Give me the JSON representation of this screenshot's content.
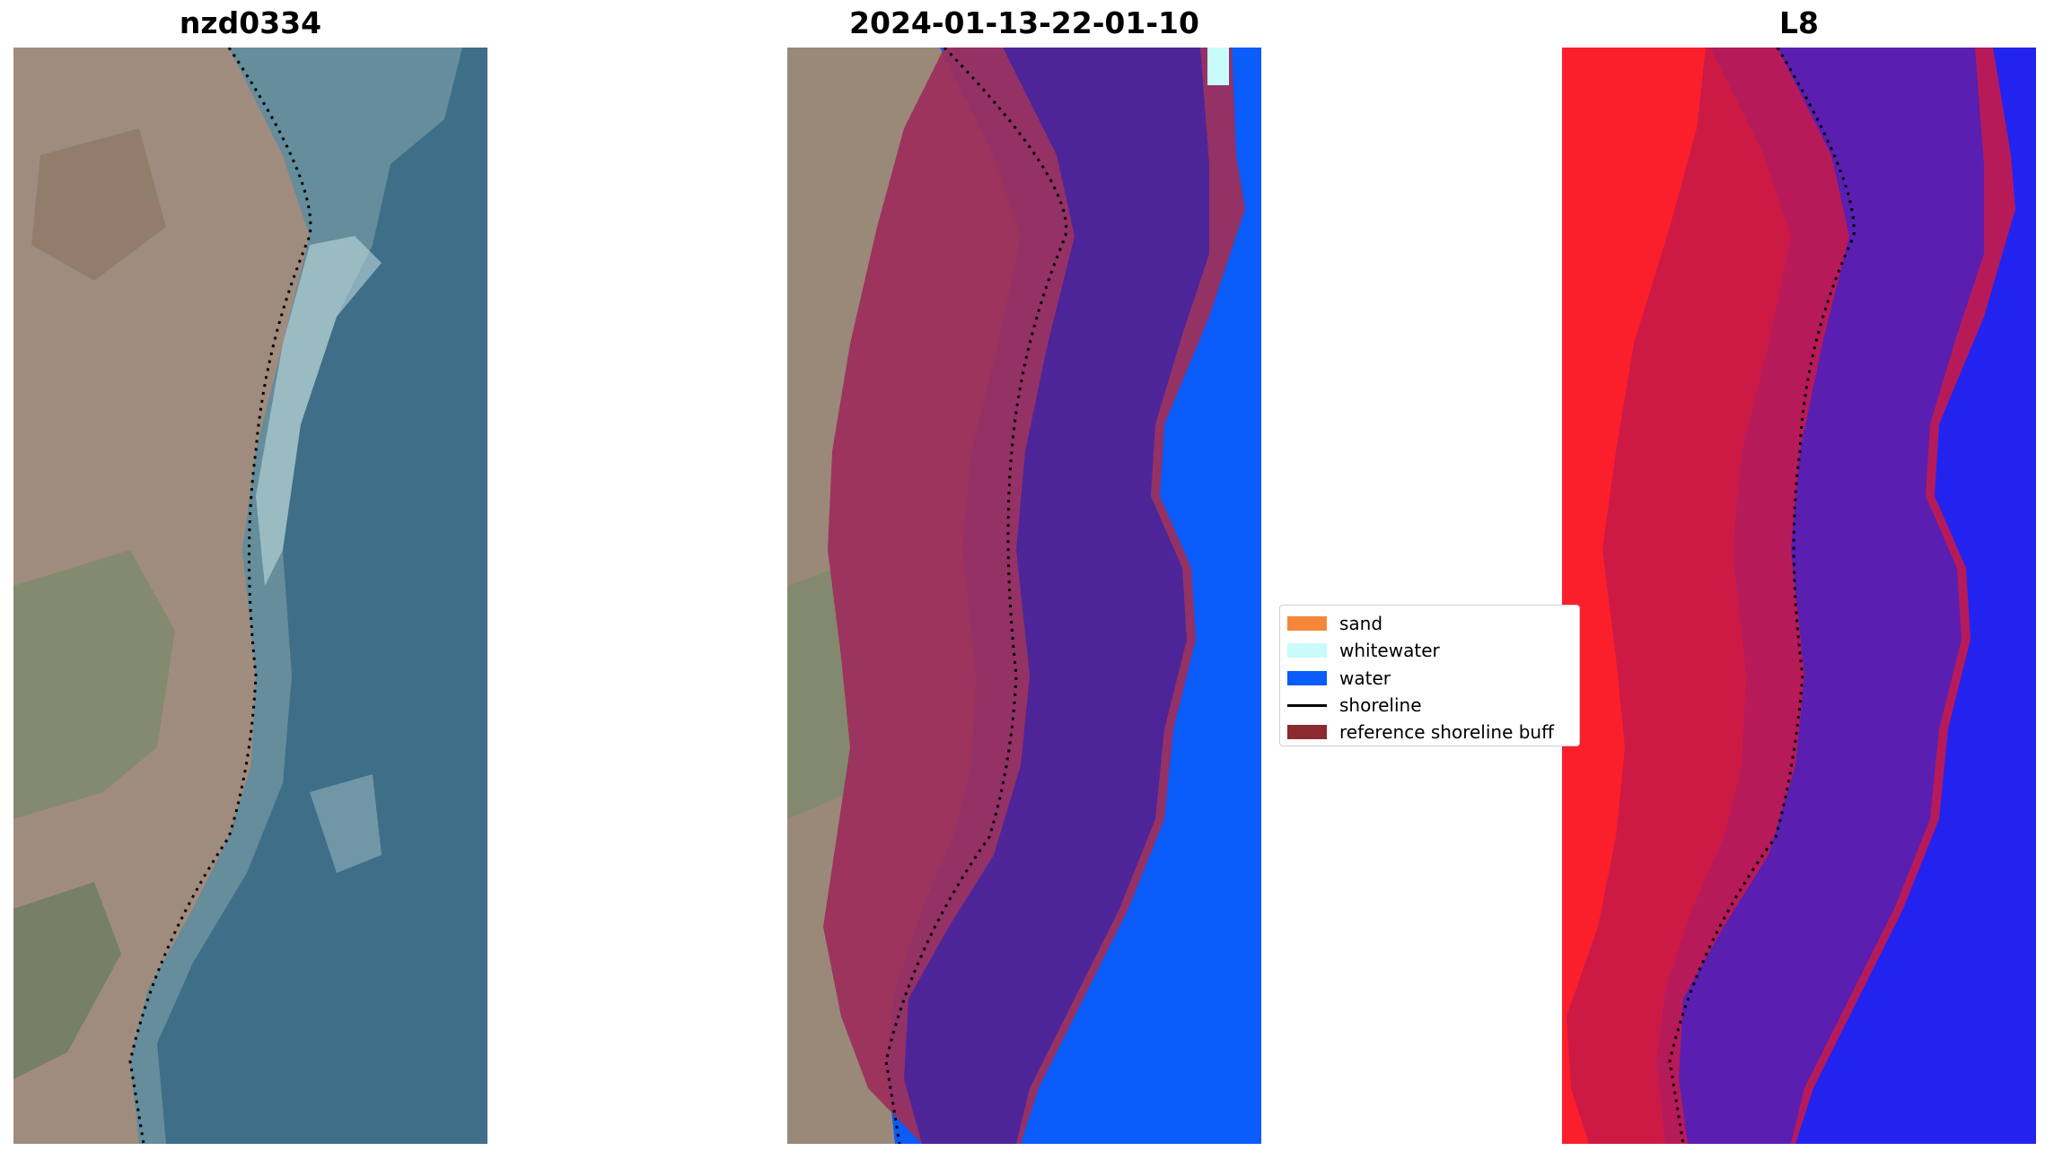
{
  "panels": [
    {
      "title": "nzd0334"
    },
    {
      "title": "2024-01-13-22-01-10"
    },
    {
      "title": "L8"
    }
  ],
  "legend": {
    "items": [
      {
        "label": "sand",
        "color": "#f5873a"
      },
      {
        "label": "whitewater",
        "color": "#c8fbf9"
      },
      {
        "label": "water",
        "color": "#0a5cfb"
      },
      {
        "label": "shoreline",
        "color": "#000000"
      },
      {
        "label": "reference shoreline buff",
        "color": "#8b2b30"
      }
    ]
  },
  "colors": {
    "land": "#9b8a7c",
    "sea": "#3d6d86",
    "buffer": "#9c2f5d",
    "water_class": "#0a5cfb",
    "ndwi_land": "#fb1f2b",
    "ndwi_water": "#2323f0"
  }
}
